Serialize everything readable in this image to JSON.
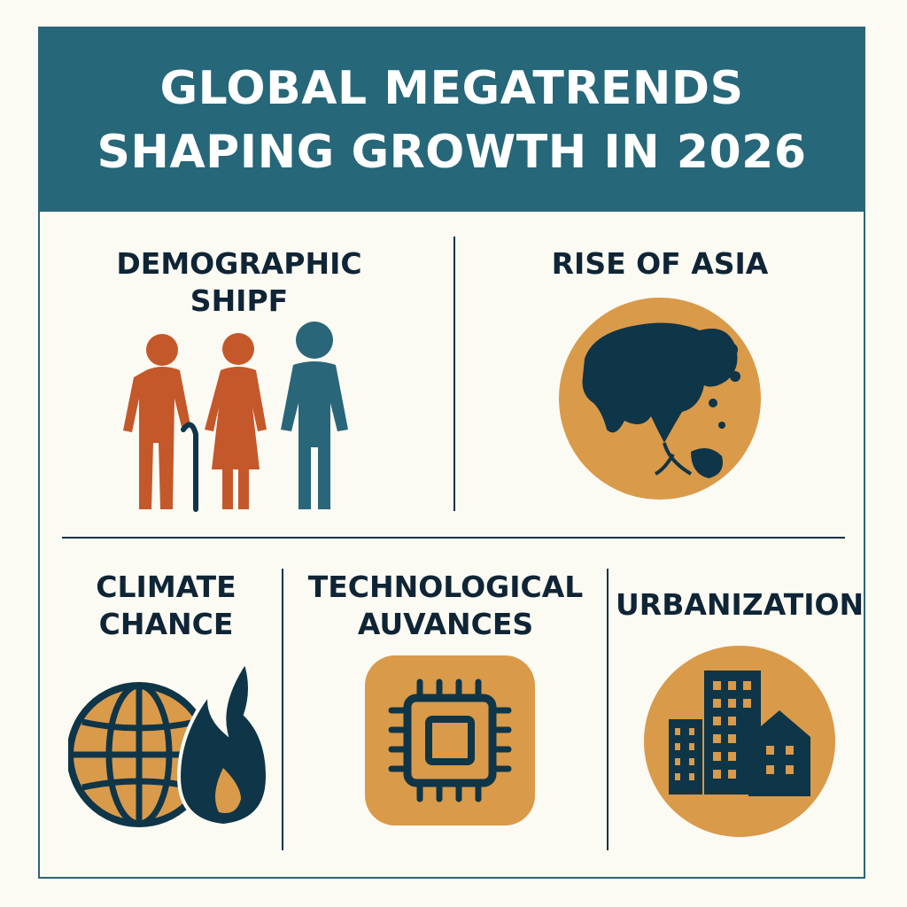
{
  "header": {
    "title_line1": "GLOBAL MEGATRENDS",
    "title_line2": "SHAPING GROWTH IN 2026"
  },
  "trends": [
    {
      "id": "demographic",
      "label_line1": "DEMOGRAPHIC",
      "label_line2": "SHIPF",
      "icon": "people-icon"
    },
    {
      "id": "asia",
      "label_line1": "RISE OF ASIA",
      "icon": "globe-asia-icon"
    },
    {
      "id": "climate",
      "label_line1": "CLIMATE",
      "label_line2": "CHANCE",
      "icon": "globe-flame-icon"
    },
    {
      "id": "tech",
      "label_line1": "TECHNOLOGICAL",
      "label_line2": "AUVANCES",
      "icon": "chip-icon"
    },
    {
      "id": "urban",
      "label_line1": "URBANIZATION",
      "icon": "buildings-icon"
    }
  ],
  "colors": {
    "header_bg": "#266779",
    "accent_orange": "#d99a4a",
    "rust": "#c4582a",
    "teal": "#2a6679",
    "navy": "#0f3548",
    "background": "#fbfaf3"
  }
}
